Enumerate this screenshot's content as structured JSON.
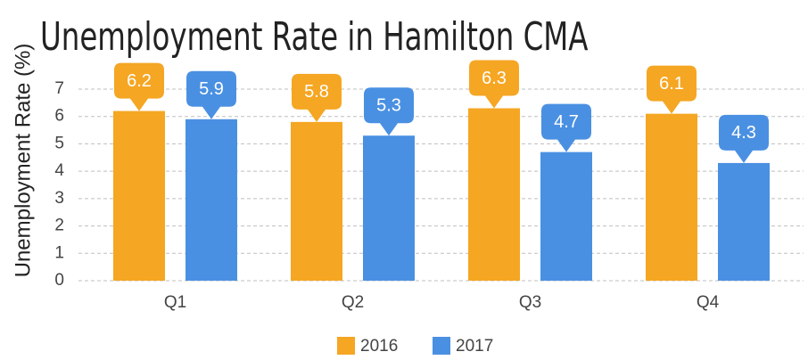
{
  "chart_data": {
    "type": "bar",
    "title": "Unemployment Rate in Hamilton CMA",
    "y_label": "Unemployment Rate (%)",
    "categories": [
      "Q1",
      "Q2",
      "Q3",
      "Q4"
    ],
    "series": [
      {
        "name": "2016",
        "color": "#F5A623",
        "values": [
          6.2,
          5.8,
          6.3,
          6.1
        ]
      },
      {
        "name": "2017",
        "color": "#4A90E2",
        "values": [
          5.9,
          5.3,
          4.7,
          4.3
        ]
      }
    ],
    "ylim": [
      0,
      7
    ],
    "yticks": [
      0,
      1,
      2,
      3,
      4,
      5,
      6,
      7
    ],
    "grid": true,
    "legend": "bottom"
  }
}
